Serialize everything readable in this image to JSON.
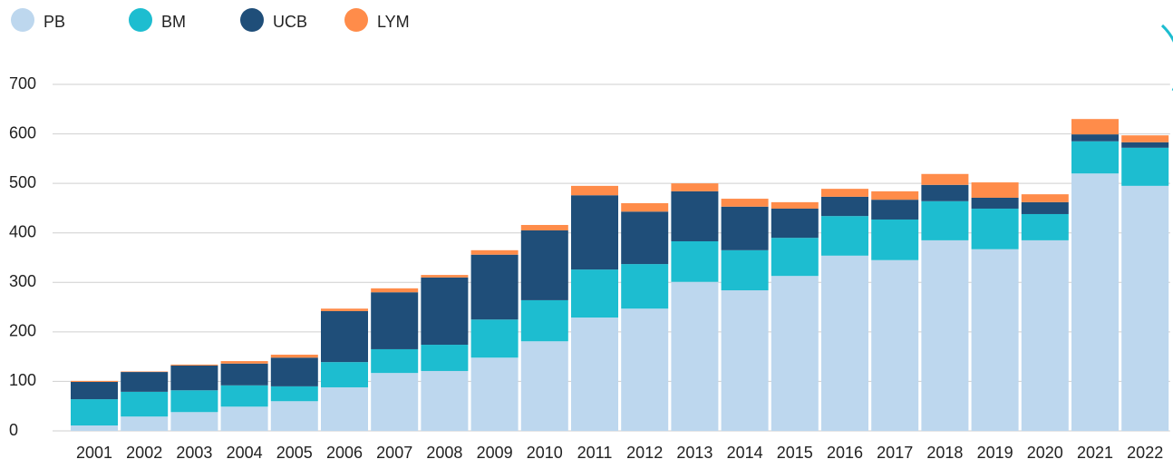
{
  "chart_data": {
    "type": "stacked_bar",
    "categories": [
      "2001",
      "2002",
      "2003",
      "2004",
      "2005",
      "2006",
      "2007",
      "2008",
      "2009",
      "2010",
      "2011",
      "2012",
      "2013",
      "2014",
      "2015",
      "2016",
      "2017",
      "2018",
      "2019",
      "2020",
      "2021",
      "2022"
    ],
    "series": [
      {
        "name": "PB",
        "color": "#bdd7ee",
        "values": [
          11,
          29,
          38,
          49,
          60,
          88,
          117,
          121,
          148,
          181,
          229,
          247,
          301,
          284,
          313,
          354,
          345,
          385,
          367,
          385,
          520,
          495
        ]
      },
      {
        "name": "BM",
        "color": "#1dbdd0",
        "values": [
          53,
          50,
          44,
          43,
          30,
          51,
          48,
          53,
          77,
          83,
          97,
          90,
          82,
          81,
          77,
          80,
          82,
          79,
          82,
          53,
          65,
          77
        ]
      },
      {
        "name": "UCB",
        "color": "#1f4e79",
        "values": [
          35,
          40,
          50,
          44,
          58,
          103,
          115,
          136,
          131,
          141,
          150,
          106,
          101,
          88,
          59,
          39,
          40,
          33,
          22,
          24,
          14,
          11
        ]
      },
      {
        "name": "LYM",
        "color": "#ff8c4a",
        "values": [
          2,
          1,
          2,
          5,
          6,
          5,
          8,
          5,
          9,
          11,
          19,
          17,
          16,
          16,
          13,
          16,
          17,
          22,
          31,
          16,
          31,
          14
        ]
      }
    ],
    "ylim": [
      0,
      700
    ],
    "yticks": [
      0,
      100,
      200,
      300,
      400,
      500,
      600,
      700
    ],
    "grid": true
  }
}
